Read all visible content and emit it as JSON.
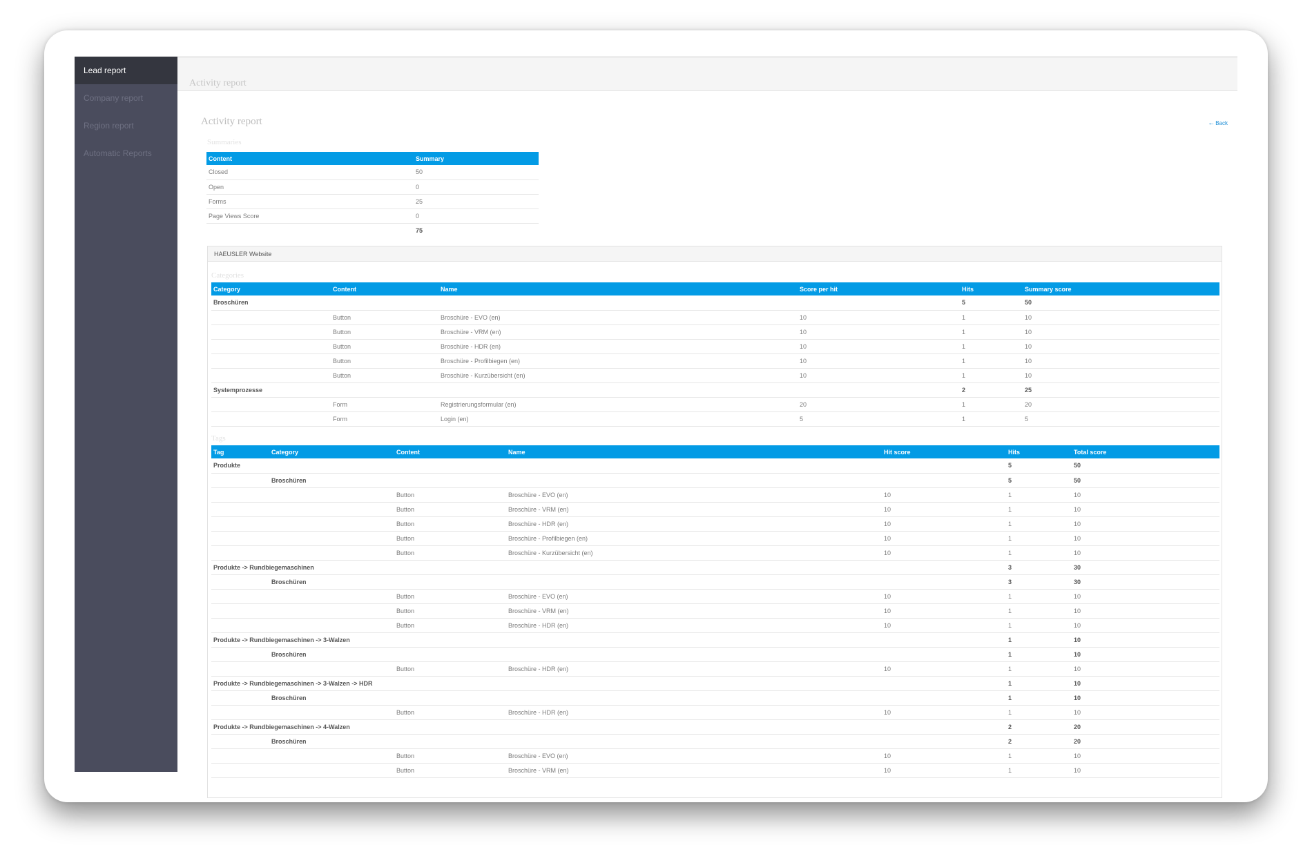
{
  "sidebar": {
    "items": [
      {
        "label": "Lead report",
        "active": true
      },
      {
        "label": "Company report",
        "active": false
      },
      {
        "label": "Region report",
        "active": false
      },
      {
        "label": "Automatic Reports",
        "active": false
      }
    ]
  },
  "header": {
    "breadcrumb": "Activity report"
  },
  "page": {
    "title": "Activity report",
    "back_label": "Back"
  },
  "summaries": {
    "label": "Summaries",
    "columns": [
      "Content",
      "Summary"
    ],
    "rows": [
      [
        "Closed",
        "50"
      ],
      [
        "Open",
        "0"
      ],
      [
        "Forms",
        "25"
      ],
      [
        "Page Views Score",
        "0"
      ]
    ],
    "total": "75"
  },
  "website": {
    "title": "HAEUSLER Website",
    "categories": {
      "label": "Categories",
      "columns": [
        "Category",
        "Content",
        "Name",
        "Score per hit",
        "Hits",
        "Summary score"
      ],
      "rows": [
        {
          "group": true,
          "cells": [
            "Broschüren",
            "",
            "",
            "",
            "5",
            "50"
          ]
        },
        {
          "group": false,
          "cells": [
            "",
            "Button",
            "Broschüre - EVO (en)",
            "10",
            "1",
            "10"
          ]
        },
        {
          "group": false,
          "cells": [
            "",
            "Button",
            "Broschüre - VRM (en)",
            "10",
            "1",
            "10"
          ]
        },
        {
          "group": false,
          "cells": [
            "",
            "Button",
            "Broschüre - HDR (en)",
            "10",
            "1",
            "10"
          ]
        },
        {
          "group": false,
          "cells": [
            "",
            "Button",
            "Broschüre - Profilbiegen (en)",
            "10",
            "1",
            "10"
          ]
        },
        {
          "group": false,
          "cells": [
            "",
            "Button",
            "Broschüre - Kurzübersicht (en)",
            "10",
            "1",
            "10"
          ]
        },
        {
          "group": true,
          "cells": [
            "Systemprozesse",
            "",
            "",
            "",
            "2",
            "25"
          ]
        },
        {
          "group": false,
          "cells": [
            "",
            "Form",
            "Registrierungsformular (en)",
            "20",
            "1",
            "20"
          ]
        },
        {
          "group": false,
          "cells": [
            "",
            "Form",
            "Login (en)",
            "5",
            "1",
            "5"
          ]
        }
      ]
    },
    "tags": {
      "label": "Tags",
      "columns": [
        "Tag",
        "Category",
        "Content",
        "Name",
        "Hit score",
        "Hits",
        "Total score"
      ],
      "rows": [
        {
          "group": true,
          "cells": [
            "Produkte",
            "",
            "",
            "",
            "",
            "5",
            "50"
          ]
        },
        {
          "group": true,
          "cells": [
            "",
            "Broschüren",
            "",
            "",
            "",
            "5",
            "50"
          ]
        },
        {
          "group": false,
          "cells": [
            "",
            "",
            "Button",
            "Broschüre - EVO (en)",
            "10",
            "1",
            "10"
          ]
        },
        {
          "group": false,
          "cells": [
            "",
            "",
            "Button",
            "Broschüre - VRM (en)",
            "10",
            "1",
            "10"
          ]
        },
        {
          "group": false,
          "cells": [
            "",
            "",
            "Button",
            "Broschüre - HDR (en)",
            "10",
            "1",
            "10"
          ]
        },
        {
          "group": false,
          "cells": [
            "",
            "",
            "Button",
            "Broschüre - Profilbiegen (en)",
            "10",
            "1",
            "10"
          ]
        },
        {
          "group": false,
          "cells": [
            "",
            "",
            "Button",
            "Broschüre - Kurzübersicht (en)",
            "10",
            "1",
            "10"
          ]
        },
        {
          "group": true,
          "cells": [
            "Produkte -> Rundbiegemaschinen",
            "",
            "",
            "",
            "",
            "3",
            "30"
          ]
        },
        {
          "group": true,
          "cells": [
            "",
            "Broschüren",
            "",
            "",
            "",
            "3",
            "30"
          ]
        },
        {
          "group": false,
          "cells": [
            "",
            "",
            "Button",
            "Broschüre - EVO (en)",
            "10",
            "1",
            "10"
          ]
        },
        {
          "group": false,
          "cells": [
            "",
            "",
            "Button",
            "Broschüre - VRM (en)",
            "10",
            "1",
            "10"
          ]
        },
        {
          "group": false,
          "cells": [
            "",
            "",
            "Button",
            "Broschüre - HDR (en)",
            "10",
            "1",
            "10"
          ]
        },
        {
          "group": true,
          "cells": [
            "Produkte -> Rundbiegemaschinen -> 3-Walzen",
            "",
            "",
            "",
            "",
            "1",
            "10"
          ]
        },
        {
          "group": true,
          "cells": [
            "",
            "Broschüren",
            "",
            "",
            "",
            "1",
            "10"
          ]
        },
        {
          "group": false,
          "cells": [
            "",
            "",
            "Button",
            "Broschüre - HDR (en)",
            "10",
            "1",
            "10"
          ]
        },
        {
          "group": true,
          "cells": [
            "Produkte -> Rundbiegemaschinen -> 3-Walzen -> HDR",
            "",
            "",
            "",
            "",
            "1",
            "10"
          ]
        },
        {
          "group": true,
          "cells": [
            "",
            "Broschüren",
            "",
            "",
            "",
            "1",
            "10"
          ]
        },
        {
          "group": false,
          "cells": [
            "",
            "",
            "Button",
            "Broschüre - HDR (en)",
            "10",
            "1",
            "10"
          ]
        },
        {
          "group": true,
          "cells": [
            "Produkte -> Rundbiegemaschinen -> 4-Walzen",
            "",
            "",
            "",
            "",
            "2",
            "20"
          ]
        },
        {
          "group": true,
          "cells": [
            "",
            "Broschüren",
            "",
            "",
            "",
            "2",
            "20"
          ]
        },
        {
          "group": false,
          "cells": [
            "",
            "",
            "Button",
            "Broschüre - EVO (en)",
            "10",
            "1",
            "10"
          ]
        },
        {
          "group": false,
          "cells": [
            "",
            "",
            "Button",
            "Broschüre - VRM (en)",
            "10",
            "1",
            "10"
          ]
        }
      ]
    }
  }
}
